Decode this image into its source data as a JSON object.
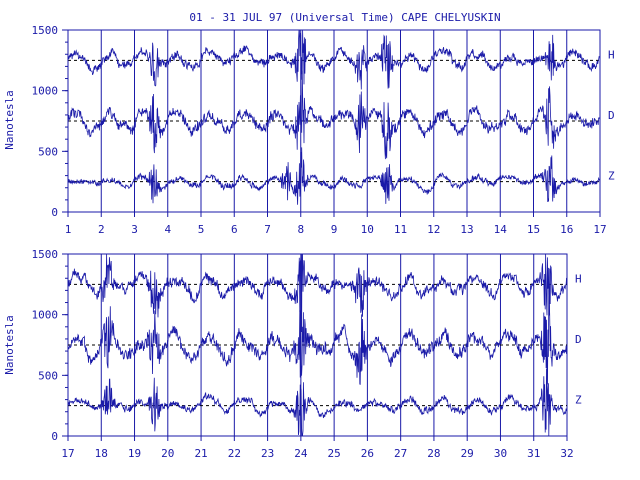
{
  "chart_data": {
    "type": "line",
    "title": "01 - 31 JUL 97 (Universal Time) CAPE CHELYUSKIN",
    "ylabel": "Nanotesla",
    "xlabel": "",
    "grid": true,
    "color": "#1a1aa8",
    "panels": [
      {
        "xlim": [
          1,
          17
        ],
        "x_ticks": [
          1,
          2,
          3,
          4,
          5,
          6,
          7,
          8,
          9,
          10,
          11,
          12,
          13,
          14,
          15,
          16,
          17
        ],
        "x_tick_labels": [
          "1",
          "2",
          "3",
          "4",
          "5",
          "6",
          "7",
          "8",
          "9",
          "10",
          "11",
          "12",
          "13",
          "14",
          "15",
          "16",
          "17"
        ],
        "ylim": [
          0,
          1500
        ],
        "y_ticks": [
          0,
          500,
          1000,
          1500
        ],
        "y_tick_labels": [
          "0",
          "500",
          "1000",
          "1500"
        ],
        "baselines": [
          1250,
          750,
          250
        ],
        "series": [
          {
            "name": "H",
            "level": 1250,
            "amplitude": 90,
            "disturbances": [
              [
                3.6,
                220
              ],
              [
                8.0,
                380
              ],
              [
                9.8,
                260
              ],
              [
                10.6,
                300
              ],
              [
                15.5,
                250
              ]
            ]
          },
          {
            "name": "D",
            "level": 750,
            "amplitude": 110,
            "disturbances": [
              [
                3.6,
                280
              ],
              [
                8.0,
                420
              ],
              [
                9.8,
                300
              ],
              [
                10.6,
                350
              ],
              [
                15.5,
                320
              ]
            ]
          },
          {
            "name": "Z",
            "level": 250,
            "amplitude": 60,
            "disturbances": [
              [
                3.6,
                180
              ],
              [
                7.6,
                200
              ],
              [
                8.0,
                300
              ],
              [
                10.6,
                220
              ],
              [
                15.5,
                260
              ]
            ]
          }
        ]
      },
      {
        "xlim": [
          17,
          32
        ],
        "x_ticks": [
          17,
          18,
          19,
          20,
          21,
          22,
          23,
          24,
          25,
          26,
          27,
          28,
          29,
          30,
          31,
          32
        ],
        "x_tick_labels": [
          "17",
          "18",
          "19",
          "20",
          "21",
          "22",
          "23",
          "24",
          "25",
          "26",
          "27",
          "28",
          "29",
          "30",
          "31",
          "32"
        ],
        "ylim": [
          0,
          1500
        ],
        "y_ticks": [
          0,
          500,
          1000,
          1500
        ],
        "y_tick_labels": [
          "0",
          "500",
          "1000",
          "1500"
        ],
        "baselines": [
          1250,
          750,
          250
        ],
        "series": [
          {
            "name": "H",
            "level": 1250,
            "amplitude": 110,
            "disturbances": [
              [
                18.2,
                260
              ],
              [
                19.6,
                300
              ],
              [
                24.0,
                380
              ],
              [
                25.8,
                260
              ],
              [
                31.4,
                380
              ]
            ]
          },
          {
            "name": "D",
            "level": 750,
            "amplitude": 130,
            "disturbances": [
              [
                18.2,
                320
              ],
              [
                19.6,
                340
              ],
              [
                24.0,
                420
              ],
              [
                25.8,
                280
              ],
              [
                31.4,
                460
              ]
            ]
          },
          {
            "name": "Z",
            "level": 250,
            "amplitude": 70,
            "disturbances": [
              [
                18.2,
                200
              ],
              [
                19.6,
                240
              ],
              [
                24.0,
                300
              ],
              [
                31.4,
                340
              ]
            ]
          }
        ]
      }
    ]
  }
}
